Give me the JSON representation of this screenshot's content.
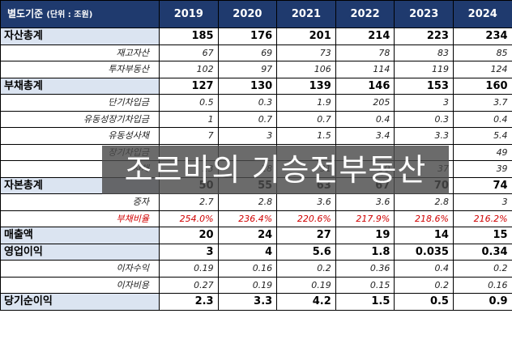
{
  "header": {
    "label": "별도기준",
    "unit": "(단위 : 조원)",
    "years": [
      "2019",
      "2020",
      "2021",
      "2022",
      "2023",
      "2024"
    ]
  },
  "rows": [
    {
      "type": "main",
      "label": "자산총계",
      "values": [
        "185",
        "176",
        "201",
        "214",
        "223",
        "234"
      ]
    },
    {
      "type": "sub",
      "label": "재고자산",
      "values": [
        "67",
        "69",
        "73",
        "78",
        "83",
        "85"
      ]
    },
    {
      "type": "sub",
      "label": "투자부동산",
      "values": [
        "102",
        "97",
        "106",
        "114",
        "119",
        "124"
      ]
    },
    {
      "type": "main",
      "label": "부채총계",
      "values": [
        "127",
        "130",
        "139",
        "146",
        "153",
        "160"
      ]
    },
    {
      "type": "sub",
      "label": "단기차입금",
      "values": [
        "0.5",
        "0.3",
        "1.9",
        "205",
        "3",
        "3.7"
      ]
    },
    {
      "type": "sub",
      "label": "유동성장기차입금",
      "values": [
        "1",
        "0.7",
        "0.7",
        "0.4",
        "0.3",
        "0.4"
      ]
    },
    {
      "type": "sub",
      "label": "유동성사채",
      "values": [
        "7",
        "3",
        "1.5",
        "3.4",
        "3.3",
        "5.4"
      ]
    },
    {
      "type": "sub",
      "label": "장기차입금",
      "values": [
        "",
        "",
        "",
        "",
        "",
        "49"
      ]
    },
    {
      "type": "sub",
      "label": "사채",
      "values": [
        "23",
        "28",
        "31",
        "30",
        "37",
        "39"
      ]
    },
    {
      "type": "main",
      "label": "자본총계",
      "values": [
        "50",
        "55",
        "63",
        "67",
        "70",
        "74"
      ]
    },
    {
      "type": "sub",
      "label": "증자",
      "values": [
        "2.7",
        "2.8",
        "3.6",
        "3.6",
        "2.8",
        "3"
      ]
    },
    {
      "type": "sub red",
      "label": "부채비율",
      "values": [
        "254.0%",
        "236.4%",
        "220.6%",
        "217.9%",
        "218.6%",
        "216.2%"
      ]
    },
    {
      "type": "main",
      "label": "매출액",
      "values": [
        "20",
        "24",
        "27",
        "19",
        "14",
        "15"
      ]
    },
    {
      "type": "main",
      "label": "영업이익",
      "values": [
        "3",
        "4",
        "5.6",
        "1.8",
        "0.035",
        "0.34"
      ]
    },
    {
      "type": "sub",
      "label": "이자수익",
      "values": [
        "0.19",
        "0.16",
        "0.2",
        "0.36",
        "0.4",
        "0.2"
      ]
    },
    {
      "type": "sub",
      "label": "이자비용",
      "values": [
        "0.27",
        "0.19",
        "0.19",
        "0.15",
        "0.2",
        "0.16"
      ]
    },
    {
      "type": "main",
      "label": "당기순이익",
      "values": [
        "2.3",
        "3.3",
        "4.2",
        "1.5",
        "0.5",
        "0.9"
      ]
    }
  ],
  "overlay": {
    "text": "조르바의 기승전부동산"
  }
}
